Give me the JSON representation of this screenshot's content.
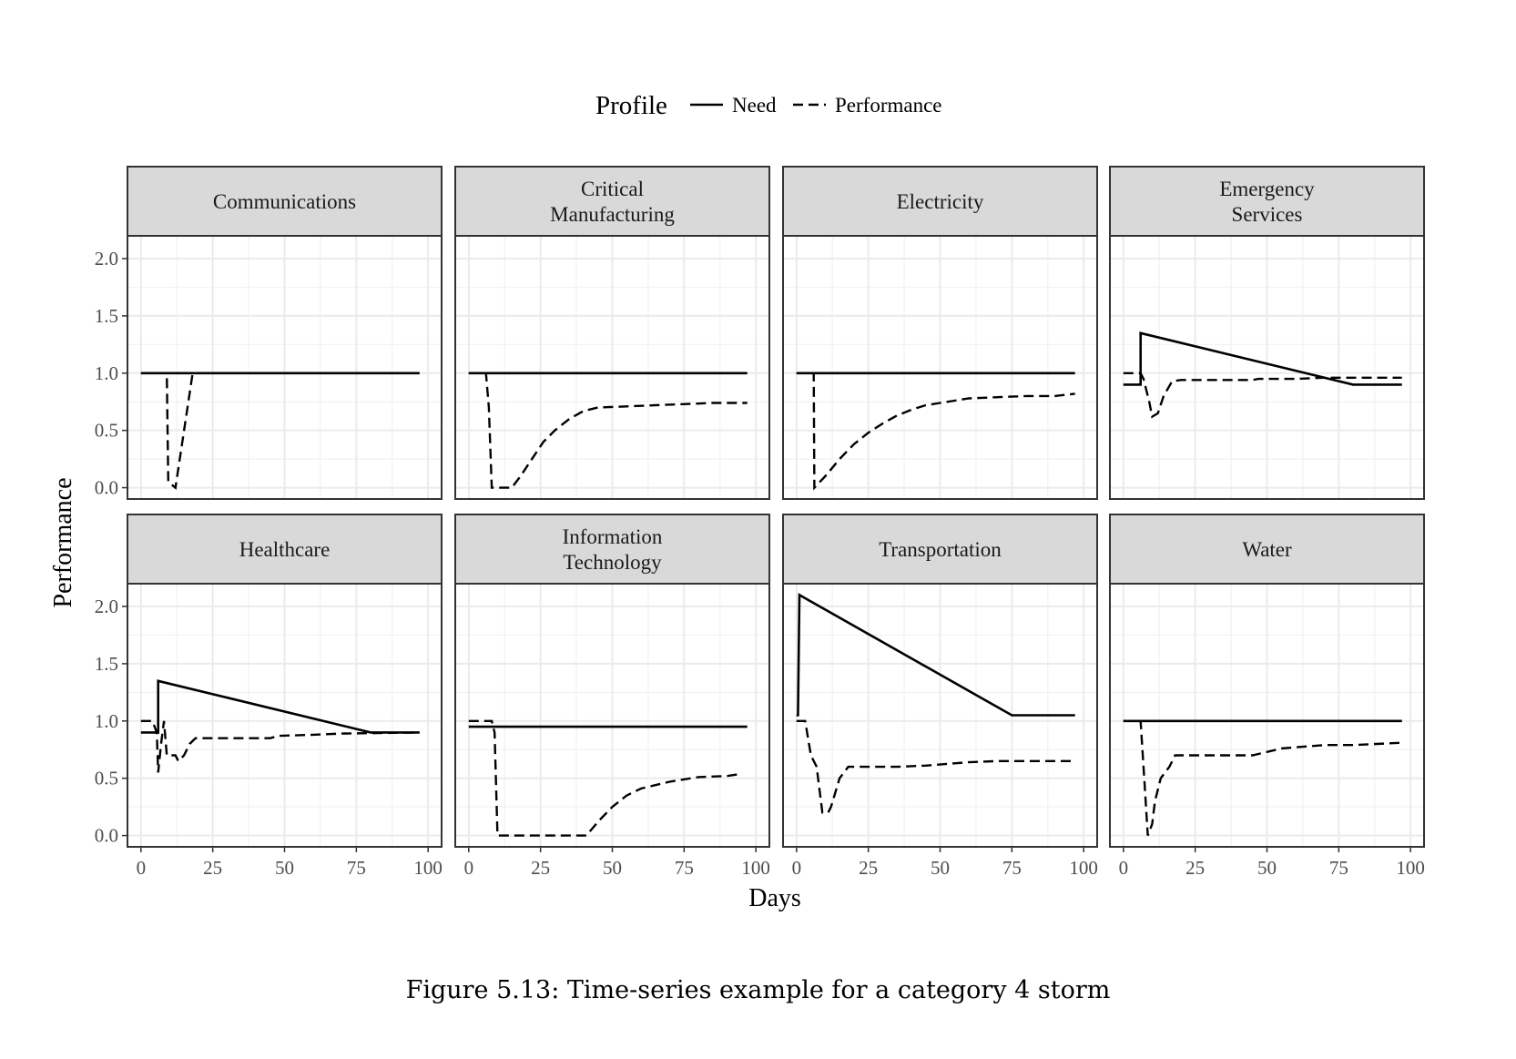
{
  "legend": {
    "title": "Profile",
    "need_label": "Need",
    "performance_label": "Performance"
  },
  "caption": "Figure 5.13: Time-series example for a category 4 storm",
  "chart_data": {
    "type": "line",
    "xlabel": "Days",
    "ylabel": "Performance",
    "xlim": [
      0,
      100
    ],
    "ylim": [
      0,
      2.1
    ],
    "x_ticks": [
      0,
      25,
      50,
      75,
      100
    ],
    "y_ticks": [
      0.0,
      0.5,
      1.0,
      1.5,
      2.0
    ],
    "y_tick_labels": [
      "0.0",
      "0.5",
      "1.0",
      "1.5",
      "2.0"
    ],
    "grid": true,
    "legend_position": "top",
    "facets": [
      {
        "title": [
          "Communications"
        ],
        "need": [
          [
            0,
            1.0
          ],
          [
            97,
            1.0
          ]
        ],
        "performance": [
          [
            0,
            1.0
          ],
          [
            9,
            1.0
          ],
          [
            9.5,
            0.05
          ],
          [
            12,
            0.0
          ],
          [
            18,
            1.0
          ],
          [
            97,
            1.0
          ]
        ]
      },
      {
        "title": [
          "Critical",
          "Manufacturing"
        ],
        "need": [
          [
            0,
            1.0
          ],
          [
            97,
            1.0
          ]
        ],
        "performance": [
          [
            0,
            1.0
          ],
          [
            6,
            1.0
          ],
          [
            7,
            0.7
          ],
          [
            8,
            0.0
          ],
          [
            15,
            0.0
          ],
          [
            18,
            0.1
          ],
          [
            22,
            0.25
          ],
          [
            26,
            0.4
          ],
          [
            30,
            0.5
          ],
          [
            35,
            0.6
          ],
          [
            40,
            0.67
          ],
          [
            45,
            0.7
          ],
          [
            55,
            0.71
          ],
          [
            65,
            0.72
          ],
          [
            75,
            0.73
          ],
          [
            85,
            0.74
          ],
          [
            97,
            0.74
          ]
        ]
      },
      {
        "title": [
          "Electricity"
        ],
        "need": [
          [
            0,
            1.0
          ],
          [
            97,
            1.0
          ]
        ],
        "performance": [
          [
            0,
            1.0
          ],
          [
            6,
            1.0
          ],
          [
            6.2,
            0.0
          ],
          [
            10,
            0.1
          ],
          [
            15,
            0.25
          ],
          [
            20,
            0.38
          ],
          [
            25,
            0.48
          ],
          [
            30,
            0.56
          ],
          [
            35,
            0.63
          ],
          [
            40,
            0.68
          ],
          [
            45,
            0.72
          ],
          [
            50,
            0.74
          ],
          [
            55,
            0.76
          ],
          [
            60,
            0.78
          ],
          [
            70,
            0.79
          ],
          [
            80,
            0.8
          ],
          [
            90,
            0.8
          ],
          [
            97,
            0.82
          ]
        ]
      },
      {
        "title": [
          "Emergency",
          "Services"
        ],
        "need": [
          [
            0,
            0.9
          ],
          [
            6,
            0.9
          ],
          [
            6,
            1.35
          ],
          [
            80,
            0.9
          ],
          [
            97,
            0.9
          ]
        ],
        "performance": [
          [
            0,
            1.0
          ],
          [
            6,
            1.0
          ],
          [
            7,
            0.95
          ],
          [
            9,
            0.75
          ],
          [
            10,
            0.62
          ],
          [
            12,
            0.65
          ],
          [
            14,
            0.8
          ],
          [
            17,
            0.93
          ],
          [
            20,
            0.94
          ],
          [
            30,
            0.94
          ],
          [
            45,
            0.94
          ],
          [
            47,
            0.95
          ],
          [
            60,
            0.95
          ],
          [
            70,
            0.96
          ],
          [
            97,
            0.96
          ]
        ]
      },
      {
        "title": [
          "Healthcare"
        ],
        "need": [
          [
            0,
            0.9
          ],
          [
            6,
            0.9
          ],
          [
            6,
            1.35
          ],
          [
            80,
            0.9
          ],
          [
            97,
            0.9
          ]
        ],
        "performance": [
          [
            0,
            1.0
          ],
          [
            4,
            1.0
          ],
          [
            5.5,
            0.9
          ],
          [
            6,
            0.55
          ],
          [
            7,
            0.8
          ],
          [
            8,
            1.0
          ],
          [
            9,
            0.7
          ],
          [
            12,
            0.7
          ],
          [
            13,
            0.65
          ],
          [
            15,
            0.7
          ],
          [
            17,
            0.8
          ],
          [
            19,
            0.85
          ],
          [
            30,
            0.85
          ],
          [
            40,
            0.85
          ],
          [
            45,
            0.85
          ],
          [
            48,
            0.87
          ],
          [
            60,
            0.88
          ],
          [
            70,
            0.89
          ],
          [
            97,
            0.9
          ]
        ]
      },
      {
        "title": [
          "Information",
          "Technology"
        ],
        "need": [
          [
            0,
            0.95
          ],
          [
            97,
            0.95
          ]
        ],
        "performance": [
          [
            0,
            1.0
          ],
          [
            8,
            1.0
          ],
          [
            9,
            0.9
          ],
          [
            10,
            0.0
          ],
          [
            20,
            0.0
          ],
          [
            30,
            0.0
          ],
          [
            41,
            0.0
          ],
          [
            45,
            0.12
          ],
          [
            50,
            0.25
          ],
          [
            55,
            0.35
          ],
          [
            60,
            0.41
          ],
          [
            65,
            0.44
          ],
          [
            70,
            0.47
          ],
          [
            75,
            0.49
          ],
          [
            80,
            0.51
          ],
          [
            90,
            0.52
          ],
          [
            95,
            0.54
          ]
        ]
      },
      {
        "title": [
          "Transportation"
        ],
        "need": [
          [
            0,
            1.05
          ],
          [
            0.5,
            1.05
          ],
          [
            1,
            2.1
          ],
          [
            75,
            1.05
          ],
          [
            97,
            1.05
          ]
        ],
        "performance": [
          [
            0,
            1.0
          ],
          [
            3,
            1.0
          ],
          [
            5,
            0.7
          ],
          [
            7,
            0.6
          ],
          [
            9,
            0.2
          ],
          [
            11,
            0.2
          ],
          [
            12,
            0.25
          ],
          [
            15,
            0.5
          ],
          [
            18,
            0.6
          ],
          [
            25,
            0.6
          ],
          [
            35,
            0.6
          ],
          [
            45,
            0.61
          ],
          [
            55,
            0.63
          ],
          [
            60,
            0.64
          ],
          [
            70,
            0.65
          ],
          [
            85,
            0.65
          ],
          [
            97,
            0.65
          ]
        ]
      },
      {
        "title": [
          "Water"
        ],
        "need": [
          [
            0,
            1.0
          ],
          [
            97,
            1.0
          ]
        ],
        "performance": [
          [
            0,
            1.0
          ],
          [
            6,
            1.0
          ],
          [
            7.5,
            0.4
          ],
          [
            8.5,
            0.0
          ],
          [
            10,
            0.1
          ],
          [
            11,
            0.3
          ],
          [
            13,
            0.5
          ],
          [
            16,
            0.6
          ],
          [
            18,
            0.7
          ],
          [
            25,
            0.7
          ],
          [
            35,
            0.7
          ],
          [
            45,
            0.7
          ],
          [
            50,
            0.73
          ],
          [
            55,
            0.76
          ],
          [
            60,
            0.77
          ],
          [
            70,
            0.79
          ],
          [
            80,
            0.79
          ],
          [
            97,
            0.81
          ]
        ]
      }
    ]
  }
}
